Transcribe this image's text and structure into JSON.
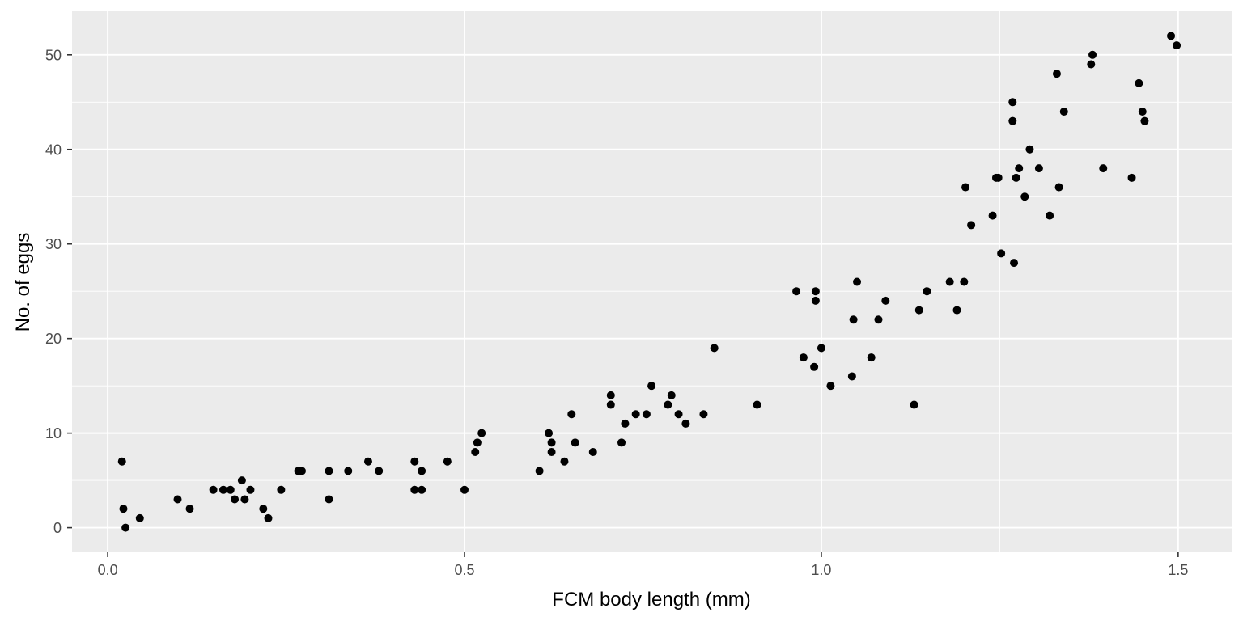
{
  "chart_data": {
    "type": "scatter",
    "title": "",
    "xlabel": "FCM body length (mm)",
    "ylabel": "No. of eggs",
    "xlim": [
      -0.05,
      1.575
    ],
    "ylim": [
      -2.6,
      54.6
    ],
    "x_ticks": [
      0.0,
      0.5,
      1.0,
      1.5
    ],
    "x_tick_labels": [
      "0.0",
      "0.5",
      "1.0",
      "1.5"
    ],
    "y_ticks": [
      0,
      10,
      20,
      30,
      40,
      50
    ],
    "y_tick_labels": [
      "0",
      "10",
      "20",
      "30",
      "40",
      "50"
    ],
    "grid": true,
    "legend": "none",
    "colors": {
      "panel": "#ebebeb",
      "grid": "#ffffff",
      "point": "#000000"
    },
    "points": [
      {
        "x": 0.02,
        "y": 7
      },
      {
        "x": 0.022,
        "y": 2
      },
      {
        "x": 0.025,
        "y": 0
      },
      {
        "x": 0.045,
        "y": 1
      },
      {
        "x": 0.098,
        "y": 3
      },
      {
        "x": 0.115,
        "y": 2
      },
      {
        "x": 0.148,
        "y": 4
      },
      {
        "x": 0.162,
        "y": 4
      },
      {
        "x": 0.172,
        "y": 4
      },
      {
        "x": 0.178,
        "y": 3
      },
      {
        "x": 0.188,
        "y": 5
      },
      {
        "x": 0.192,
        "y": 3
      },
      {
        "x": 0.2,
        "y": 4
      },
      {
        "x": 0.218,
        "y": 2
      },
      {
        "x": 0.225,
        "y": 1
      },
      {
        "x": 0.243,
        "y": 4
      },
      {
        "x": 0.267,
        "y": 6
      },
      {
        "x": 0.272,
        "y": 6
      },
      {
        "x": 0.31,
        "y": 6
      },
      {
        "x": 0.31,
        "y": 3
      },
      {
        "x": 0.337,
        "y": 6
      },
      {
        "x": 0.365,
        "y": 7
      },
      {
        "x": 0.38,
        "y": 6
      },
      {
        "x": 0.43,
        "y": 7
      },
      {
        "x": 0.43,
        "y": 4
      },
      {
        "x": 0.44,
        "y": 4
      },
      {
        "x": 0.44,
        "y": 6
      },
      {
        "x": 0.476,
        "y": 7
      },
      {
        "x": 0.5,
        "y": 4
      },
      {
        "x": 0.515,
        "y": 8
      },
      {
        "x": 0.518,
        "y": 9
      },
      {
        "x": 0.524,
        "y": 10
      },
      {
        "x": 0.605,
        "y": 6
      },
      {
        "x": 0.618,
        "y": 10
      },
      {
        "x": 0.622,
        "y": 9
      },
      {
        "x": 0.622,
        "y": 8
      },
      {
        "x": 0.64,
        "y": 7
      },
      {
        "x": 0.65,
        "y": 12
      },
      {
        "x": 0.655,
        "y": 9
      },
      {
        "x": 0.68,
        "y": 8
      },
      {
        "x": 0.705,
        "y": 14
      },
      {
        "x": 0.705,
        "y": 13
      },
      {
        "x": 0.72,
        "y": 9
      },
      {
        "x": 0.725,
        "y": 11
      },
      {
        "x": 0.74,
        "y": 12
      },
      {
        "x": 0.755,
        "y": 12
      },
      {
        "x": 0.762,
        "y": 15
      },
      {
        "x": 0.785,
        "y": 13
      },
      {
        "x": 0.79,
        "y": 14
      },
      {
        "x": 0.8,
        "y": 12
      },
      {
        "x": 0.81,
        "y": 11
      },
      {
        "x": 0.835,
        "y": 12
      },
      {
        "x": 0.85,
        "y": 19
      },
      {
        "x": 0.91,
        "y": 13
      },
      {
        "x": 0.965,
        "y": 25
      },
      {
        "x": 0.975,
        "y": 18
      },
      {
        "x": 0.99,
        "y": 17
      },
      {
        "x": 0.992,
        "y": 25
      },
      {
        "x": 0.992,
        "y": 24
      },
      {
        "x": 1.0,
        "y": 19
      },
      {
        "x": 1.013,
        "y": 15
      },
      {
        "x": 1.043,
        "y": 16
      },
      {
        "x": 1.045,
        "y": 22
      },
      {
        "x": 1.05,
        "y": 26
      },
      {
        "x": 1.07,
        "y": 18
      },
      {
        "x": 1.08,
        "y": 22
      },
      {
        "x": 1.09,
        "y": 24
      },
      {
        "x": 1.13,
        "y": 13
      },
      {
        "x": 1.137,
        "y": 23
      },
      {
        "x": 1.148,
        "y": 25
      },
      {
        "x": 1.18,
        "y": 26
      },
      {
        "x": 1.19,
        "y": 23
      },
      {
        "x": 1.2,
        "y": 26
      },
      {
        "x": 1.202,
        "y": 36
      },
      {
        "x": 1.21,
        "y": 32
      },
      {
        "x": 1.24,
        "y": 33
      },
      {
        "x": 1.245,
        "y": 37
      },
      {
        "x": 1.248,
        "y": 37
      },
      {
        "x": 1.252,
        "y": 29
      },
      {
        "x": 1.268,
        "y": 45
      },
      {
        "x": 1.268,
        "y": 43
      },
      {
        "x": 1.27,
        "y": 28
      },
      {
        "x": 1.273,
        "y": 37
      },
      {
        "x": 1.277,
        "y": 38
      },
      {
        "x": 1.285,
        "y": 35
      },
      {
        "x": 1.292,
        "y": 40
      },
      {
        "x": 1.305,
        "y": 38
      },
      {
        "x": 1.32,
        "y": 33
      },
      {
        "x": 1.33,
        "y": 48
      },
      {
        "x": 1.333,
        "y": 36
      },
      {
        "x": 1.34,
        "y": 44
      },
      {
        "x": 1.378,
        "y": 49
      },
      {
        "x": 1.38,
        "y": 50
      },
      {
        "x": 1.395,
        "y": 38
      },
      {
        "x": 1.435,
        "y": 37
      },
      {
        "x": 1.445,
        "y": 47
      },
      {
        "x": 1.45,
        "y": 44
      },
      {
        "x": 1.453,
        "y": 43
      },
      {
        "x": 1.49,
        "y": 52
      },
      {
        "x": 1.498,
        "y": 51
      }
    ]
  }
}
